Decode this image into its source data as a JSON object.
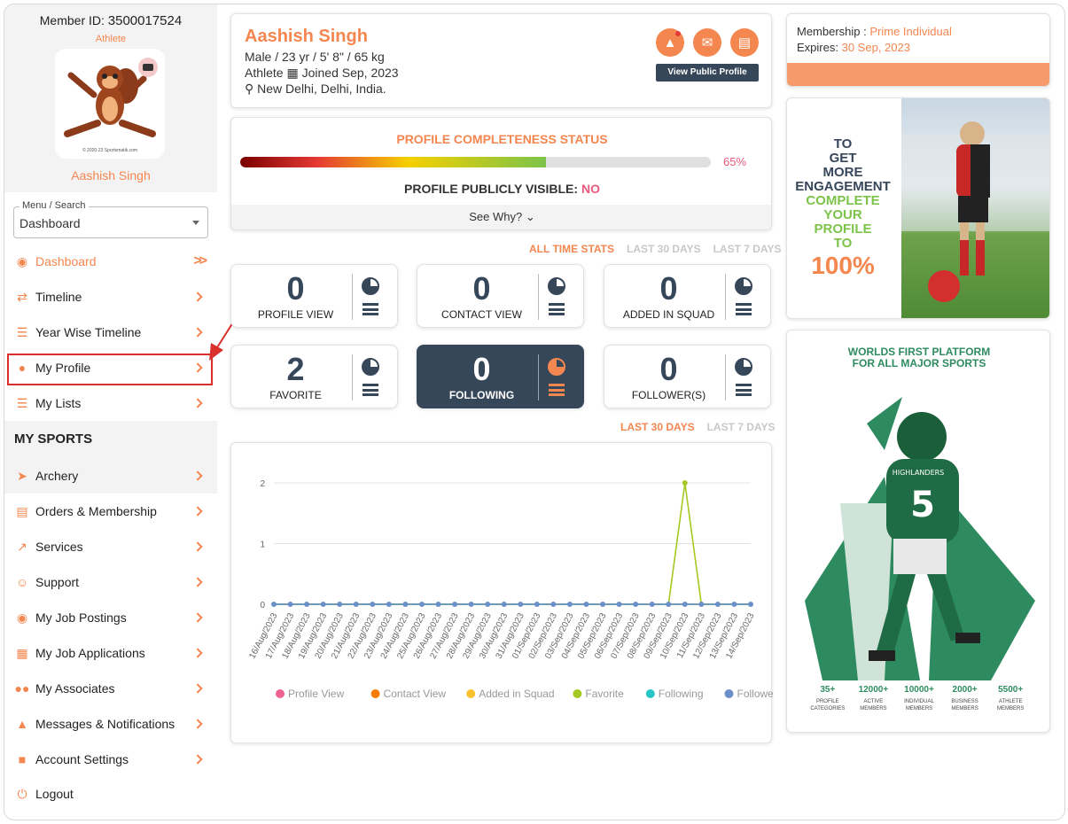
{
  "sidebar": {
    "member_id_label": "Member ID:",
    "member_id": "3500017524",
    "role": "Athlete",
    "name": "Aashish Singh",
    "avatar_copyright": "© 2020-23 Sportsmatik.com",
    "menu_search": {
      "legend": "Menu / Search",
      "value": "Dashboard"
    },
    "nav": [
      {
        "label": "Dashboard",
        "icon": "palette-icon"
      },
      {
        "label": "Timeline",
        "icon": "retweet-icon"
      },
      {
        "label": "Year Wise Timeline",
        "icon": "list-icon"
      },
      {
        "label": "My Profile",
        "icon": "user-icon"
      },
      {
        "label": "My Lists",
        "icon": "list-icon"
      }
    ],
    "section_title": "MY SPORTS",
    "sports": [
      {
        "label": "Archery",
        "icon": "archer-icon"
      },
      {
        "label": "Orders & Membership",
        "icon": "list-alt-icon"
      },
      {
        "label": "Services",
        "icon": "share-icon"
      },
      {
        "label": "Support",
        "icon": "headset-icon"
      },
      {
        "label": "My Job Postings",
        "icon": "jobs-icon"
      },
      {
        "label": "My Job Applications",
        "icon": "document-search-icon"
      },
      {
        "label": "My Associates",
        "icon": "users-icon"
      },
      {
        "label": "Messages & Notifications",
        "icon": "bell-icon"
      },
      {
        "label": "Account Settings",
        "icon": "lock-icon"
      },
      {
        "label": "Logout",
        "icon": "power-icon"
      }
    ]
  },
  "header": {
    "name": "Aashish Singh",
    "details": "Male / 23 yr / 5' 8\" / 65 kg",
    "role": "Athlete",
    "joined": "Joined Sep, 2023",
    "location": "New Delhi, Delhi, India.",
    "view_public_profile": "View Public Profile"
  },
  "completeness": {
    "title": "PROFILE COMPLETENESS STATUS",
    "percent": 65,
    "percent_label": "65%",
    "visible_label": "PROFILE PUBLICLY VISIBLE:",
    "visible_value": "NO",
    "see_why": "See Why? ⌄"
  },
  "stat_tabs": [
    "ALL TIME STATS",
    "LAST 30 DAYS",
    "LAST 7 DAYS"
  ],
  "stats": [
    {
      "value": "0",
      "label": "PROFILE VIEW"
    },
    {
      "value": "0",
      "label": "CONTACT VIEW"
    },
    {
      "value": "0",
      "label": "ADDED IN SQUAD"
    },
    {
      "value": "2",
      "label": "FAVORITE"
    },
    {
      "value": "0",
      "label": "FOLLOWING"
    },
    {
      "value": "0",
      "label": "FOLLOWER(S)"
    }
  ],
  "chart_tabs": [
    "LAST 30 DAYS",
    "LAST 7 DAYS"
  ],
  "chart_data": {
    "type": "line",
    "x": [
      "16/Aug/2023",
      "17/Aug/2023",
      "18/Aug/2023",
      "19/Aug/2023",
      "20/Aug/2023",
      "21/Aug/2023",
      "22/Aug/2023",
      "23/Aug/2023",
      "24/Aug/2023",
      "25/Aug/2023",
      "26/Aug/2023",
      "27/Aug/2023",
      "28/Aug/2023",
      "29/Aug/2023",
      "30/Aug/2023",
      "31/Aug/2023",
      "01/Sep/2023",
      "02/Sep/2023",
      "03/Sep/2023",
      "04/Sep/2023",
      "05/Sep/2023",
      "06/Sep/2023",
      "07/Sep/2023",
      "08/Sep/2023",
      "09/Sep/2023",
      "10/Sep/2023",
      "11/Sep/2023",
      "12/Sep/2023",
      "13/Sep/2023",
      "14/Sep/2023"
    ],
    "ylim": [
      0,
      2
    ],
    "yticks": [
      "0",
      "1",
      "2"
    ],
    "grid": true,
    "legend_position": "bottom",
    "series": [
      {
        "name": "Profile View",
        "color": "#f06292",
        "values": [
          0,
          0,
          0,
          0,
          0,
          0,
          0,
          0,
          0,
          0,
          0,
          0,
          0,
          0,
          0,
          0,
          0,
          0,
          0,
          0,
          0,
          0,
          0,
          0,
          0,
          0,
          0,
          0,
          0,
          0
        ]
      },
      {
        "name": "Contact View",
        "color": "#f57c00",
        "values": [
          0,
          0,
          0,
          0,
          0,
          0,
          0,
          0,
          0,
          0,
          0,
          0,
          0,
          0,
          0,
          0,
          0,
          0,
          0,
          0,
          0,
          0,
          0,
          0,
          0,
          0,
          0,
          0,
          0,
          0
        ]
      },
      {
        "name": "Added in Squad",
        "color": "#fbc02d",
        "values": [
          0,
          0,
          0,
          0,
          0,
          0,
          0,
          0,
          0,
          0,
          0,
          0,
          0,
          0,
          0,
          0,
          0,
          0,
          0,
          0,
          0,
          0,
          0,
          0,
          0,
          0,
          0,
          0,
          0,
          0
        ]
      },
      {
        "name": "Favorite",
        "color": "#a5c822",
        "values": [
          0,
          0,
          0,
          0,
          0,
          0,
          0,
          0,
          0,
          0,
          0,
          0,
          0,
          0,
          0,
          0,
          0,
          0,
          0,
          0,
          0,
          0,
          0,
          0,
          0,
          2,
          0,
          0,
          0,
          0
        ]
      },
      {
        "name": "Following",
        "color": "#26c6c6",
        "values": [
          0,
          0,
          0,
          0,
          0,
          0,
          0,
          0,
          0,
          0,
          0,
          0,
          0,
          0,
          0,
          0,
          0,
          0,
          0,
          0,
          0,
          0,
          0,
          0,
          0,
          0,
          0,
          0,
          0,
          0
        ]
      },
      {
        "name": "Follower(s)",
        "color": "#6b8fc9",
        "values": [
          0,
          0,
          0,
          0,
          0,
          0,
          0,
          0,
          0,
          0,
          0,
          0,
          0,
          0,
          0,
          0,
          0,
          0,
          0,
          0,
          0,
          0,
          0,
          0,
          0,
          0,
          0,
          0,
          0,
          0
        ]
      }
    ]
  },
  "membership": {
    "label": "Membership :",
    "plan": "Prime Individual",
    "expires_label": "Expires:",
    "expires": "30 Sep, 2023"
  },
  "ad1": {
    "line1": "TO",
    "line2": "GET",
    "line3": "MORE",
    "line4": "ENGAGEMENT",
    "line5": "COMPLETE",
    "line6": "YOUR",
    "line7": "PROFILE",
    "line8": "TO",
    "line9": "100%"
  },
  "ad2": {
    "headline1": "WORLDS FIRST PLATFORM",
    "headline2": "FOR ALL MAJOR SPORTS",
    "jersey_text": "HIGHLANDERS",
    "jersey_number": "5",
    "stats": [
      {
        "n": "35+",
        "c1": "PROFILE",
        "c2": "CATEGORIES"
      },
      {
        "n": "12000+",
        "c1": "ACTIVE",
        "c2": "MEMBERS"
      },
      {
        "n": "10000+",
        "c1": "INDIVIDUAL",
        "c2": "MEMBERS"
      },
      {
        "n": "2000+",
        "c1": "BUSINESS",
        "c2": "MEMBERS"
      },
      {
        "n": "5500+",
        "c1": "ATHLETE",
        "c2": "MEMBERS"
      }
    ]
  },
  "colors": {
    "accent": "#f4864f",
    "dark": "#37475a",
    "highlight_box": "#d9302c"
  }
}
